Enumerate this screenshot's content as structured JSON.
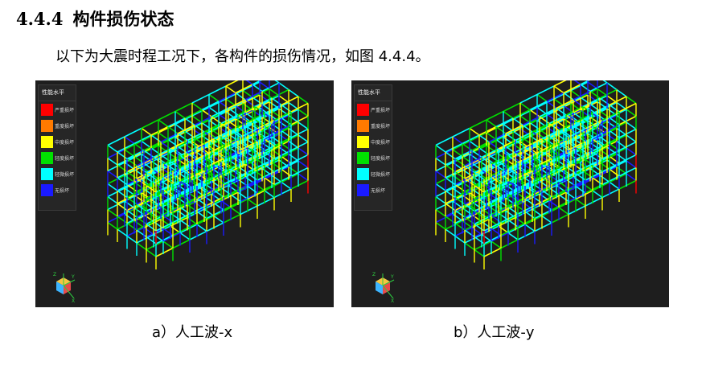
{
  "section": {
    "number": "4.4.4",
    "title": "构件损伤状态"
  },
  "intro": "以下为大震时程工况下，各构件的损伤情况，如图 4.4.4。",
  "legend": {
    "title": "性能水平",
    "items": [
      {
        "label": "严重损坏",
        "color": "#ff0000"
      },
      {
        "label": "重度损坏",
        "color": "#ff7a00"
      },
      {
        "label": "中度损坏",
        "color": "#ffff00"
      },
      {
        "label": "轻度损坏",
        "color": "#00e000"
      },
      {
        "label": "轻微损坏",
        "color": "#00ffff"
      },
      {
        "label": "无损坏",
        "color": "#1a1aff"
      }
    ]
  },
  "axes": {
    "x": "X",
    "y": "Y",
    "z": "Z"
  },
  "figures": [
    {
      "id": "a",
      "caption": "a）人工波-x"
    },
    {
      "id": "b",
      "caption": "b）人工波-y"
    }
  ]
}
